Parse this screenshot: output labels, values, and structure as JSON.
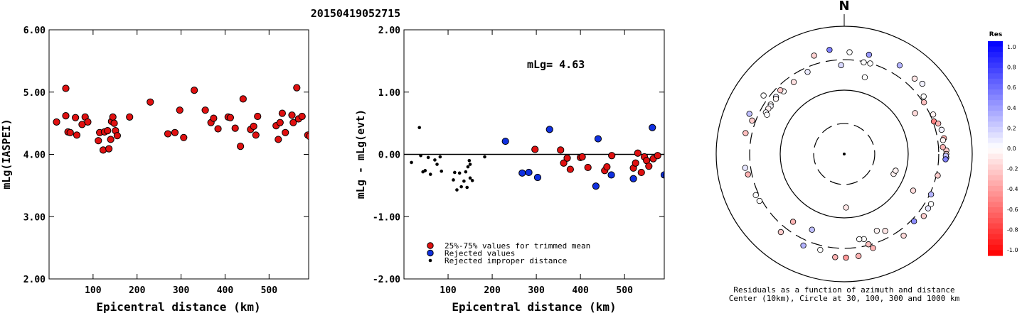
{
  "page_title": "20150419052715",
  "chart_data": [
    {
      "type": "scatter",
      "xlabel": "Epicentral distance (km)",
      "ylabel": "mLg(IASPEI)",
      "xlim": [
        0,
        590
      ],
      "ylim": [
        2.0,
        6.0
      ],
      "x_ticks": [
        100,
        200,
        300,
        400,
        500
      ],
      "x_tick_labels": [
        "100",
        "200",
        "300",
        "400",
        "500"
      ],
      "y_ticks": [
        2.0,
        3.0,
        4.0,
        5.0,
        6.0
      ],
      "y_tick_labels": [
        "2.00",
        "3.00",
        "4.00",
        "5.00",
        "6.00"
      ],
      "series": [
        {
          "color": "#e01010",
          "points": [
            [
              17,
              4.52
            ],
            [
              38,
              5.06
            ],
            [
              38,
              4.62
            ],
            [
              43,
              4.36
            ],
            [
              48,
              4.35
            ],
            [
              60,
              4.59
            ],
            [
              63,
              4.31
            ],
            [
              75,
              4.48
            ],
            [
              82,
              4.6
            ],
            [
              88,
              4.52
            ],
            [
              112,
              4.22
            ],
            [
              115,
              4.35
            ],
            [
              123,
              4.07
            ],
            [
              126,
              4.36
            ],
            [
              133,
              4.38
            ],
            [
              136,
              4.09
            ],
            [
              140,
              4.24
            ],
            [
              142,
              4.53
            ],
            [
              145,
              4.6
            ],
            [
              148,
              4.5
            ],
            [
              151,
              4.38
            ],
            [
              155,
              4.3
            ],
            [
              183,
              4.6
            ],
            [
              230,
              4.84
            ],
            [
              270,
              4.33
            ],
            [
              286,
              4.35
            ],
            [
              297,
              4.71
            ],
            [
              306,
              4.27
            ],
            [
              330,
              5.03
            ],
            [
              355,
              4.71
            ],
            [
              368,
              4.51
            ],
            [
              374,
              4.58
            ],
            [
              384,
              4.41
            ],
            [
              407,
              4.6
            ],
            [
              412,
              4.59
            ],
            [
              423,
              4.42
            ],
            [
              435,
              4.13
            ],
            [
              441,
              4.89
            ],
            [
              458,
              4.4
            ],
            [
              465,
              4.45
            ],
            [
              470,
              4.31
            ],
            [
              474,
              4.61
            ],
            [
              516,
              4.46
            ],
            [
              521,
              4.24
            ],
            [
              525,
              4.51
            ],
            [
              530,
              4.66
            ],
            [
              537,
              4.35
            ],
            [
              552,
              4.63
            ],
            [
              555,
              4.51
            ],
            [
              563,
              5.07
            ],
            [
              567,
              4.57
            ],
            [
              575,
              4.61
            ],
            [
              588,
              4.31
            ],
            [
              592,
              4.29
            ]
          ]
        }
      ]
    },
    {
      "type": "scatter",
      "xlabel": "Epicentral distance (km)",
      "ylabel": "mLg - mLg(evt)",
      "xlim": [
        0,
        590
      ],
      "ylim": [
        -2.0,
        2.0
      ],
      "x_ticks": [
        100,
        200,
        300,
        400,
        500
      ],
      "x_tick_labels": [
        "100",
        "200",
        "300",
        "400",
        "500"
      ],
      "y_ticks": [
        -2.0,
        -1.0,
        0.0,
        1.0,
        2.0
      ],
      "y_tick_labels": [
        "-2.00",
        "-1.00",
        "0.00",
        "1.00",
        "2.00"
      ],
      "annotation": "mLg= 4.63",
      "reference_line": 0.0,
      "legend": [
        {
          "label": "25%-75% values for trimmed mean",
          "color": "#e01010"
        },
        {
          "label": "Rejected values",
          "color": "#1030e0"
        },
        {
          "label": "Rejected improper distance",
          "color": "#000000"
        }
      ],
      "series": [
        {
          "name": "25%-75% values for trimmed mean",
          "color": "#e01010",
          "points": [
            [
              297,
              0.08
            ],
            [
              355,
              0.07
            ],
            [
              362,
              -0.14
            ],
            [
              370,
              -0.06
            ],
            [
              377,
              -0.24
            ],
            [
              400,
              -0.05
            ],
            [
              404,
              -0.04
            ],
            [
              417,
              -0.21
            ],
            [
              455,
              -0.26
            ],
            [
              460,
              -0.2
            ],
            [
              471,
              -0.02
            ],
            [
              520,
              -0.22
            ],
            [
              525,
              -0.14
            ],
            [
              530,
              0.02
            ],
            [
              538,
              -0.29
            ],
            [
              545,
              -0.04
            ],
            [
              550,
              -0.1
            ],
            [
              555,
              -0.19
            ],
            [
              565,
              -0.07
            ],
            [
              575,
              -0.02
            ]
          ]
        },
        {
          "name": "Rejected values",
          "color": "#1030e0",
          "points": [
            [
              230,
              0.21
            ],
            [
              268,
              -0.3
            ],
            [
              283,
              -0.29
            ],
            [
              303,
              -0.37
            ],
            [
              330,
              0.4
            ],
            [
              435,
              -0.51
            ],
            [
              440,
              0.25
            ],
            [
              470,
              -0.33
            ],
            [
              520,
              -0.39
            ],
            [
              563,
              0.43
            ],
            [
              590,
              -0.33
            ],
            [
              595,
              -0.34
            ]
          ]
        },
        {
          "name": "Rejected improper distance",
          "color": "#000000",
          "points": [
            [
              17,
              -0.13
            ],
            [
              35,
              0.43
            ],
            [
              38,
              -0.02
            ],
            [
              43,
              -0.28
            ],
            [
              48,
              -0.26
            ],
            [
              55,
              -0.05
            ],
            [
              60,
              -0.32
            ],
            [
              70,
              -0.09
            ],
            [
              75,
              -0.16
            ],
            [
              82,
              -0.04
            ],
            [
              85,
              -0.27
            ],
            [
              112,
              -0.41
            ],
            [
              115,
              -0.29
            ],
            [
              120,
              -0.57
            ],
            [
              126,
              -0.3
            ],
            [
              130,
              -0.52
            ],
            [
              136,
              -0.43
            ],
            [
              140,
              -0.28
            ],
            [
              143,
              -0.53
            ],
            [
              145,
              -0.2
            ],
            [
              148,
              -0.1
            ],
            [
              150,
              -0.38
            ],
            [
              155,
              -0.42
            ],
            [
              183,
              -0.04
            ],
            [
              150,
              -0.16
            ]
          ]
        }
      ]
    },
    {
      "type": "scatter",
      "subtype": "polar",
      "north_label": "N",
      "caption_line1": "Residuals as a function of azimuth and distance",
      "caption_line2": "Center (10km), Circle at 30, 100, 300 and 1000 km",
      "rings_km": [
        30,
        100,
        300,
        1000
      ],
      "ring_styles": [
        "dashed",
        "solid",
        "dashed",
        "solid"
      ],
      "colorbar": {
        "title": "Res",
        "ticks": [
          "1.0",
          "0.8",
          "0.6",
          "0.4",
          "0.2",
          "0.0",
          "-0.2",
          "-0.4",
          "-0.6",
          "-0.8",
          "-1.0"
        ],
        "max_color": "#0000ff",
        "mid_color": "#ffffff",
        "min_color": "#ff0000"
      },
      "points_note": "each point: [azimuth_deg, distance_km, residual]",
      "points": [
        [
          178,
          69,
          -0.1
        ],
        [
          112,
          68,
          -0.06
        ],
        [
          108,
          70,
          -0.05
        ],
        [
          118,
          166,
          -0.14
        ],
        [
          14,
          400,
          0.4
        ],
        [
          343,
          408,
          -0.18
        ],
        [
          325,
          237,
          -0.12
        ],
        [
          316,
          231,
          -0.02
        ],
        [
          315,
          258,
          -0.22
        ],
        [
          310,
          246,
          0.07
        ],
        [
          309,
          236,
          -0.04
        ],
        [
          304,
          243,
          -0.01
        ],
        [
          303,
          235,
          0.03
        ],
        [
          301,
          241,
          -0.06
        ],
        [
          298,
          243,
          0.02
        ],
        [
          297,
          226,
          0.01
        ],
        [
          336,
          255,
          0.08
        ],
        [
          3,
          394,
          0.0
        ],
        [
          12,
          293,
          0.0
        ],
        [
          16,
          298,
          0.0
        ],
        [
          32,
          432,
          0.3
        ],
        [
          352,
          443,
          0.5
        ],
        [
          43,
          411,
          -0.1
        ],
        [
          48,
          440,
          0.05
        ],
        [
          57,
          306,
          -0.25
        ],
        [
          70,
          310,
          -0.5
        ],
        [
          72,
          350,
          -0.3
        ],
        [
          76,
          370,
          0.05
        ],
        [
          81,
          378,
          -0.33
        ],
        [
          88,
          395,
          -0.2
        ],
        [
          90,
          393,
          -0.15
        ],
        [
          92,
          394,
          0.35
        ],
        [
          91,
          387,
          0.25
        ],
        [
          93,
          385,
          0.5
        ],
        [
          86,
          351,
          -0.3
        ],
        [
          82,
          362,
          -0.05
        ],
        [
          66,
          332,
          -0.05
        ],
        [
          54,
          342,
          0.0
        ],
        [
          103,
          316,
          -0.2
        ],
        [
          115,
          314,
          0.3
        ],
        [
          120,
          368,
          0.0
        ],
        [
          123,
          365,
          0.1
        ],
        [
          128,
          378,
          -0.2
        ],
        [
          144,
          380,
          -0.15
        ],
        [
          134,
          328,
          0.45
        ],
        [
          152,
          231,
          -0.1
        ],
        [
          163,
          346,
          -0.3
        ],
        [
          165,
          291,
          -0.25
        ],
        [
          172,
          410,
          -0.3
        ],
        [
          179,
          419,
          -0.4
        ],
        [
          185,
          418,
          -0.3
        ],
        [
          194,
          352,
          0.0
        ],
        [
          204,
          370,
          0.3
        ],
        [
          219,
          374,
          -0.2
        ],
        [
          241,
          326,
          0.0
        ],
        [
          245,
          334,
          0.0
        ],
        [
          258,
          344,
          -0.3
        ],
        [
          262,
          365,
          0.1
        ],
        [
          282,
          376,
          -0.25
        ],
        [
          290,
          340,
          -0.2
        ],
        [
          293,
          407,
          0.25
        ],
        [
          306,
          361,
          0.0
        ],
        [
          203,
          194,
          0.25
        ],
        [
          157,
          202,
          -0.05
        ],
        [
          167,
          233,
          0.0
        ],
        [
          170,
          226,
          0.0
        ],
        [
          217,
          213,
          -0.3
        ],
        [
          60,
          190,
          -0.15
        ],
        [
          15,
          175,
          0.0
        ],
        [
          358,
          246,
          0.15
        ]
      ]
    }
  ]
}
